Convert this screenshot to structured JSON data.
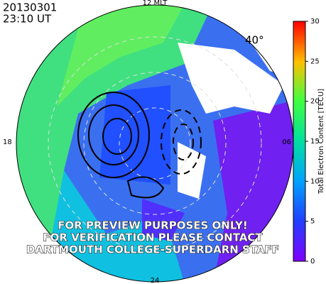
{
  "header": {
    "date": "20130301",
    "time": "23:10 UT"
  },
  "map": {
    "top_label": "12 MLT",
    "left_label": "18",
    "right_label": "06",
    "bottom_label": "24",
    "latitude_label": "40°"
  },
  "watermark": {
    "lines": [
      "FOR PREVIEW PURPOSES ONLY!",
      "FOR VERIFICATION PLEASE CONTACT",
      "DARTMOUTH COLLEGE-SUPERDARN STAFF"
    ]
  },
  "colorbar": {
    "label": "Total Electron Content [TECU]",
    "range": [
      0,
      30
    ],
    "ticks": [
      0,
      5,
      10,
      15,
      20,
      25,
      30
    ]
  }
}
